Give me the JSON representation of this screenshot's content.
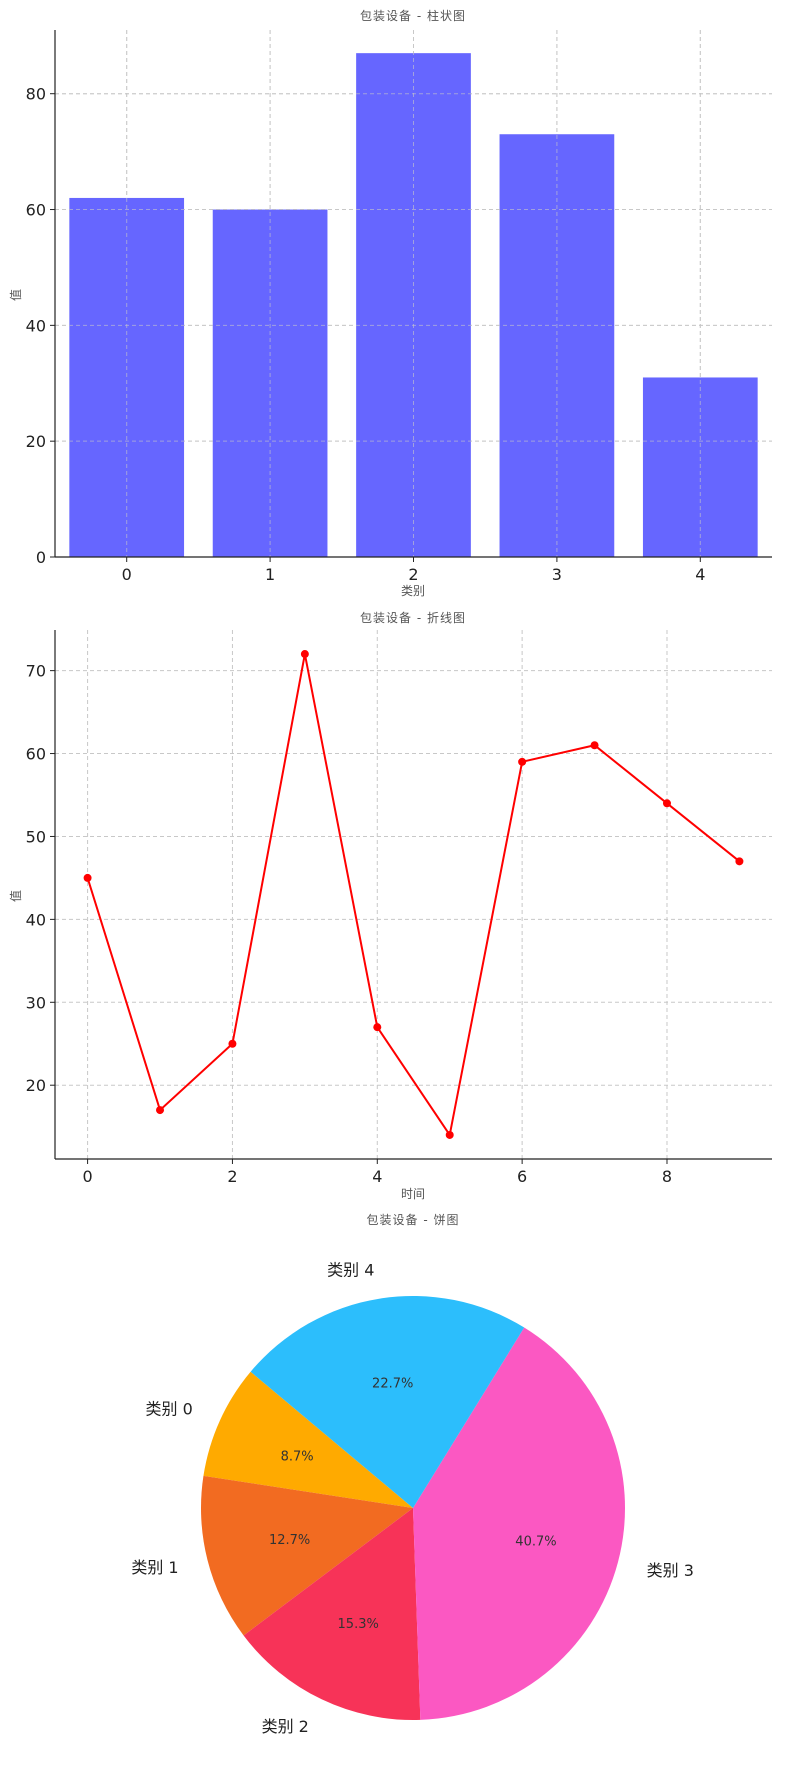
{
  "chart_data": [
    {
      "type": "bar",
      "title": "包装设备 - 柱状图",
      "xlabel": "类别",
      "ylabel": "值",
      "categories": [
        "0",
        "1",
        "2",
        "3",
        "4"
      ],
      "values": [
        62,
        60,
        87,
        73,
        31
      ],
      "ylim": [
        0,
        91
      ],
      "yticks": [
        0,
        20,
        40,
        60,
        80
      ],
      "grid": true,
      "color": "#6666ff"
    },
    {
      "type": "line",
      "title": "包装设备 - 折线图",
      "xlabel": "时间",
      "ylabel": "值",
      "x": [
        0,
        1,
        2,
        3,
        4,
        5,
        6,
        7,
        8,
        9
      ],
      "values": [
        45,
        17,
        25,
        72,
        27,
        14,
        59,
        61,
        54,
        47
      ],
      "xlim": [
        -0.45,
        9.45
      ],
      "ylim": [
        11.1,
        74.9
      ],
      "xticks": [
        0,
        2,
        4,
        6,
        8
      ],
      "yticks": [
        20,
        30,
        40,
        50,
        60,
        70
      ],
      "grid": true,
      "color": "#ff0000"
    },
    {
      "type": "pie",
      "title": "包装设备 - 饼图",
      "labels": [
        "类别 0",
        "类别 1",
        "类别 2",
        "类别 3",
        "类别 4"
      ],
      "values": [
        8.7,
        12.7,
        15.3,
        40.7,
        22.7
      ],
      "percent_labels": [
        "8.7%",
        "12.7%",
        "15.3%",
        "40.7%",
        "22.7%"
      ],
      "colors": [
        "#ffaa00",
        "#f26b21",
        "#f73358",
        "#fb58c2",
        "#2cbefc"
      ]
    }
  ]
}
